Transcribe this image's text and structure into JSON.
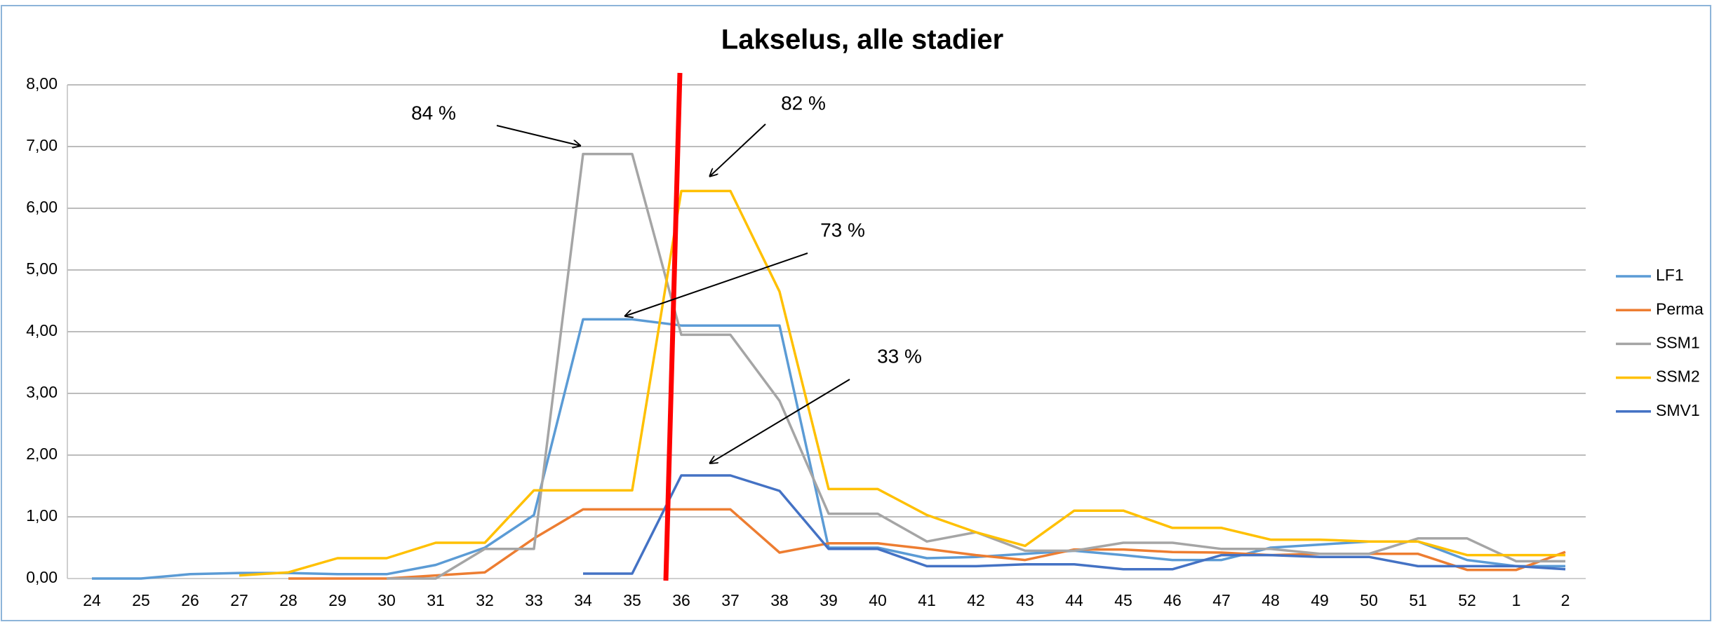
{
  "chart_data": {
    "type": "line",
    "title": "Lakselus, alle stadier",
    "categories": [
      "24",
      "25",
      "26",
      "27",
      "28",
      "29",
      "30",
      "31",
      "32",
      "33",
      "34",
      "35",
      "36",
      "37",
      "38",
      "39",
      "40",
      "41",
      "42",
      "43",
      "44",
      "45",
      "46",
      "47",
      "48",
      "49",
      "50",
      "51",
      "52",
      "1",
      "2"
    ],
    "series": [
      {
        "name": "LF1",
        "color": "#5b9bd5",
        "values": [
          0.0,
          0.0,
          0.07,
          0.09,
          0.09,
          0.07,
          0.07,
          0.22,
          0.5,
          1.03,
          4.2,
          4.2,
          4.1,
          4.1,
          4.1,
          0.5,
          0.5,
          0.33,
          0.35,
          0.4,
          0.45,
          0.38,
          0.3,
          0.3,
          0.5,
          0.55,
          0.6,
          0.6,
          0.3,
          0.2,
          0.2
        ]
      },
      {
        "name": "Perma",
        "color": "#ed7d31",
        "values": [
          null,
          null,
          null,
          null,
          0.0,
          0.0,
          0.0,
          0.05,
          0.1,
          0.65,
          1.12,
          1.12,
          1.12,
          1.12,
          0.42,
          0.57,
          0.57,
          0.48,
          0.38,
          0.3,
          0.47,
          0.47,
          0.43,
          0.42,
          0.38,
          0.4,
          0.4,
          0.4,
          0.14,
          0.14,
          0.43
        ]
      },
      {
        "name": "SSM1",
        "color": "#a5a5a5",
        "values": [
          null,
          null,
          null,
          null,
          null,
          null,
          0.0,
          0.0,
          0.48,
          0.48,
          6.88,
          6.88,
          3.95,
          3.95,
          2.88,
          1.05,
          1.05,
          0.6,
          0.75,
          0.45,
          0.45,
          0.58,
          0.58,
          0.48,
          0.48,
          0.4,
          0.4,
          0.65,
          0.65,
          0.28,
          0.28
        ]
      },
      {
        "name": "SSM2",
        "color": "#ffc000",
        "values": [
          null,
          null,
          null,
          0.05,
          0.1,
          0.33,
          0.33,
          0.58,
          0.58,
          1.43,
          1.43,
          1.43,
          6.28,
          6.28,
          4.65,
          1.45,
          1.45,
          1.03,
          0.75,
          0.53,
          1.1,
          1.1,
          0.82,
          0.82,
          0.63,
          0.63,
          0.6,
          0.6,
          0.38,
          0.38,
          0.38
        ]
      },
      {
        "name": "SMV1",
        "color": "#4472c4",
        "values": [
          null,
          null,
          null,
          null,
          null,
          null,
          null,
          null,
          null,
          null,
          0.08,
          0.08,
          1.67,
          1.67,
          1.42,
          0.48,
          0.48,
          0.2,
          0.2,
          0.23,
          0.23,
          0.15,
          0.15,
          0.38,
          0.38,
          0.35,
          0.35,
          0.2,
          0.2,
          0.2,
          0.15
        ]
      }
    ],
    "ylim": [
      0,
      8
    ],
    "yticks": [
      {
        "value": 0,
        "label": "0,00"
      },
      {
        "value": 1,
        "label": "1,00"
      },
      {
        "value": 2,
        "label": "2,00"
      },
      {
        "value": 3,
        "label": "3,00"
      },
      {
        "value": 4,
        "label": "4,00"
      },
      {
        "value": 5,
        "label": "5,00"
      },
      {
        "value": 6,
        "label": "6,00"
      },
      {
        "value": 7,
        "label": "7,00"
      },
      {
        "value": 8,
        "label": "8,00"
      }
    ],
    "grid": true,
    "legend": "right",
    "annotations": [
      {
        "text": "84 %"
      },
      {
        "text": "82 %"
      },
      {
        "text": "73 %"
      },
      {
        "text": "33 %"
      }
    ]
  }
}
